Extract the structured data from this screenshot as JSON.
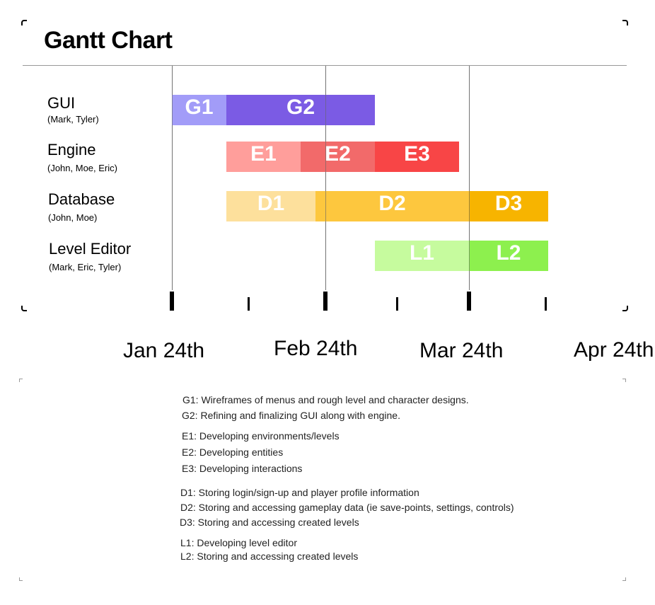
{
  "title": "Gantt Chart",
  "chart_data": {
    "type": "gantt",
    "tasks": [
      {
        "name": "GUI",
        "members": "(Mark, Tyler)",
        "phases": [
          {
            "label": "G1",
            "start": "2024-01-24",
            "end": "2024-02-04",
            "color": "#a29cf8"
          },
          {
            "label": "G2",
            "start": "2024-02-04",
            "end": "2024-03-05",
            "color": "#7b5be4"
          }
        ]
      },
      {
        "name": "Engine",
        "members": "(John, Moe, Eric)",
        "phases": [
          {
            "label": "E1",
            "start": "2024-02-04",
            "end": "2024-02-19",
            "color": "#ff9e9b"
          },
          {
            "label": "E2",
            "start": "2024-02-19",
            "end": "2024-03-05",
            "color": "#f26a6a"
          },
          {
            "label": "E3",
            "start": "2024-03-05",
            "end": "2024-03-22",
            "color": "#f84546"
          }
        ]
      },
      {
        "name": "Database",
        "members": "(John, Moe)",
        "phases": [
          {
            "label": "D1",
            "start": "2024-02-04",
            "end": "2024-02-22",
            "color": "#fde09c"
          },
          {
            "label": "D2",
            "start": "2024-02-22",
            "end": "2024-03-24",
            "color": "#fdc73e"
          },
          {
            "label": "D3",
            "start": "2024-03-24",
            "end": "2024-04-09",
            "color": "#f7b400"
          }
        ]
      },
      {
        "name": "Level Editor",
        "members": "(Mark, Eric, Tyler)",
        "phases": [
          {
            "label": "L1",
            "start": "2024-03-05",
            "end": "2024-03-24",
            "color": "#c6fb9e"
          },
          {
            "label": "L2",
            "start": "2024-03-24",
            "end": "2024-04-09",
            "color": "#8df04e"
          }
        ]
      }
    ],
    "x_ticks": [
      "Jan 24th",
      "Feb 24th",
      "Mar 24th",
      "Apr 24th"
    ],
    "x_tick_dates": [
      "2024-01-24",
      "2024-02-24",
      "2024-03-24",
      "2024-04-24"
    ],
    "x_range": [
      "2024-01-24",
      "2024-04-24"
    ],
    "grid": "vertical lines at major ticks",
    "legend": "below chart"
  },
  "legend_groups": [
    [
      "G1: Wireframes of menus and rough level and character designs.",
      "G2: Refining and finalizing GUI along with engine."
    ],
    [
      "E1: Developing environments/levels",
      "E2: Developing entities",
      "E3: Developing interactions"
    ],
    [
      "D1: Storing login/sign-up and player profile information",
      "D2: Storing and accessing gameplay data (ie save-points, settings, controls)",
      "D3: Storing and accessing created levels"
    ],
    [
      "L1: Developing level editor",
      "L2: Storing and accessing created levels"
    ]
  ]
}
